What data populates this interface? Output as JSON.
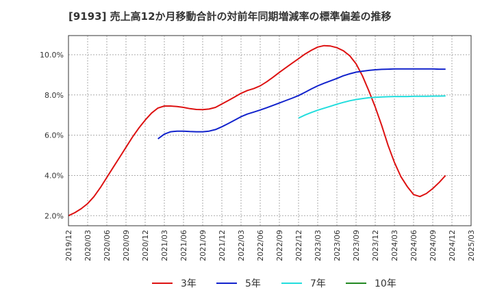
{
  "chart_data": {
    "type": "line",
    "title": "[9193]  売上高12か月移動合計の対前年同期増減率の標準偏差の推移",
    "xlabel": "",
    "ylabel": "",
    "ylim": [
      1.5,
      10.95
    ],
    "y_ticks": [
      {
        "value": 2,
        "label": "2.0%"
      },
      {
        "value": 4,
        "label": "4.0%"
      },
      {
        "value": 6,
        "label": "6.0%"
      },
      {
        "value": 8,
        "label": "8.0%"
      },
      {
        "value": 10,
        "label": "10.0%"
      }
    ],
    "x_ticks": [
      "2019/12",
      "2020/03",
      "2020/06",
      "2020/09",
      "2020/12",
      "2021/03",
      "2021/06",
      "2021/09",
      "2021/12",
      "2022/03",
      "2022/06",
      "2022/09",
      "2022/12",
      "2023/03",
      "2023/06",
      "2023/09",
      "2023/12",
      "2024/03",
      "2024/06",
      "2024/09",
      "2024/12",
      "2025/03"
    ],
    "grid": true,
    "legend_position": "bottom",
    "series": [
      {
        "name": "3年",
        "color": "#dd1111",
        "points": [
          [
            "2019/12",
            2.0
          ],
          [
            "2020/01",
            2.15
          ],
          [
            "2020/02",
            2.35
          ],
          [
            "2020/03",
            2.6
          ],
          [
            "2020/04",
            2.95
          ],
          [
            "2020/05",
            3.4
          ],
          [
            "2020/06",
            3.9
          ],
          [
            "2020/07",
            4.4
          ],
          [
            "2020/08",
            4.9
          ],
          [
            "2020/09",
            5.4
          ],
          [
            "2020/10",
            5.9
          ],
          [
            "2020/11",
            6.35
          ],
          [
            "2020/12",
            6.75
          ],
          [
            "2021/01",
            7.1
          ],
          [
            "2021/02",
            7.35
          ],
          [
            "2021/03",
            7.45
          ],
          [
            "2021/04",
            7.45
          ],
          [
            "2021/05",
            7.42
          ],
          [
            "2021/06",
            7.38
          ],
          [
            "2021/07",
            7.32
          ],
          [
            "2021/08",
            7.28
          ],
          [
            "2021/09",
            7.27
          ],
          [
            "2021/10",
            7.3
          ],
          [
            "2021/11",
            7.38
          ],
          [
            "2021/12",
            7.55
          ],
          [
            "2022/01",
            7.72
          ],
          [
            "2022/02",
            7.9
          ],
          [
            "2022/03",
            8.08
          ],
          [
            "2022/04",
            8.22
          ],
          [
            "2022/05",
            8.32
          ],
          [
            "2022/06",
            8.45
          ],
          [
            "2022/07",
            8.65
          ],
          [
            "2022/08",
            8.88
          ],
          [
            "2022/09",
            9.12
          ],
          [
            "2022/10",
            9.35
          ],
          [
            "2022/11",
            9.58
          ],
          [
            "2022/12",
            9.8
          ],
          [
            "2023/01",
            10.03
          ],
          [
            "2023/02",
            10.22
          ],
          [
            "2023/03",
            10.38
          ],
          [
            "2023/04",
            10.45
          ],
          [
            "2023/05",
            10.43
          ],
          [
            "2023/06",
            10.35
          ],
          [
            "2023/07",
            10.2
          ],
          [
            "2023/08",
            9.95
          ],
          [
            "2023/09",
            9.55
          ],
          [
            "2023/10",
            8.95
          ],
          [
            "2023/11",
            8.2
          ],
          [
            "2023/12",
            7.4
          ],
          [
            "2024/01",
            6.5
          ],
          [
            "2024/02",
            5.5
          ],
          [
            "2024/03",
            4.65
          ],
          [
            "2024/04",
            3.95
          ],
          [
            "2024/05",
            3.45
          ],
          [
            "2024/06",
            3.05
          ],
          [
            "2024/07",
            2.95
          ],
          [
            "2024/08",
            3.1
          ],
          [
            "2024/09",
            3.35
          ],
          [
            "2024/10",
            3.65
          ],
          [
            "2024/11",
            4.0
          ]
        ]
      },
      {
        "name": "5年",
        "color": "#1122cc",
        "points": [
          [
            "2021/02",
            5.82
          ],
          [
            "2021/03",
            6.05
          ],
          [
            "2021/04",
            6.17
          ],
          [
            "2021/05",
            6.2
          ],
          [
            "2021/06",
            6.2
          ],
          [
            "2021/07",
            6.18
          ],
          [
            "2021/08",
            6.17
          ],
          [
            "2021/09",
            6.17
          ],
          [
            "2021/10",
            6.2
          ],
          [
            "2021/11",
            6.28
          ],
          [
            "2021/12",
            6.42
          ],
          [
            "2022/01",
            6.58
          ],
          [
            "2022/02",
            6.75
          ],
          [
            "2022/03",
            6.92
          ],
          [
            "2022/04",
            7.05
          ],
          [
            "2022/05",
            7.15
          ],
          [
            "2022/06",
            7.25
          ],
          [
            "2022/07",
            7.36
          ],
          [
            "2022/08",
            7.48
          ],
          [
            "2022/09",
            7.6
          ],
          [
            "2022/10",
            7.72
          ],
          [
            "2022/11",
            7.84
          ],
          [
            "2022/12",
            7.97
          ],
          [
            "2023/01",
            8.13
          ],
          [
            "2023/02",
            8.3
          ],
          [
            "2023/03",
            8.45
          ],
          [
            "2023/04",
            8.58
          ],
          [
            "2023/05",
            8.7
          ],
          [
            "2023/06",
            8.82
          ],
          [
            "2023/07",
            8.95
          ],
          [
            "2023/08",
            9.05
          ],
          [
            "2023/09",
            9.13
          ],
          [
            "2023/10",
            9.18
          ],
          [
            "2023/11",
            9.22
          ],
          [
            "2023/12",
            9.25
          ],
          [
            "2024/01",
            9.27
          ],
          [
            "2024/02",
            9.28
          ],
          [
            "2024/03",
            9.29
          ],
          [
            "2024/04",
            9.29
          ],
          [
            "2024/05",
            9.29
          ],
          [
            "2024/06",
            9.29
          ],
          [
            "2024/07",
            9.29
          ],
          [
            "2024/08",
            9.29
          ],
          [
            "2024/09",
            9.29
          ],
          [
            "2024/10",
            9.28
          ],
          [
            "2024/11",
            9.28
          ]
        ]
      },
      {
        "name": "7年",
        "color": "#22dddd",
        "points": [
          [
            "2022/12",
            6.85
          ],
          [
            "2023/01",
            7.0
          ],
          [
            "2023/02",
            7.13
          ],
          [
            "2023/03",
            7.24
          ],
          [
            "2023/04",
            7.34
          ],
          [
            "2023/05",
            7.44
          ],
          [
            "2023/06",
            7.54
          ],
          [
            "2023/07",
            7.63
          ],
          [
            "2023/08",
            7.71
          ],
          [
            "2023/09",
            7.77
          ],
          [
            "2023/10",
            7.82
          ],
          [
            "2023/11",
            7.86
          ],
          [
            "2023/12",
            7.88
          ],
          [
            "2024/01",
            7.9
          ],
          [
            "2024/02",
            7.91
          ],
          [
            "2024/03",
            7.92
          ],
          [
            "2024/04",
            7.92
          ],
          [
            "2024/05",
            7.92
          ],
          [
            "2024/06",
            7.93
          ],
          [
            "2024/07",
            7.93
          ],
          [
            "2024/08",
            7.93
          ],
          [
            "2024/09",
            7.94
          ],
          [
            "2024/10",
            7.94
          ],
          [
            "2024/11",
            7.95
          ]
        ]
      },
      {
        "name": "10年",
        "color": "#228822",
        "points": []
      }
    ]
  }
}
